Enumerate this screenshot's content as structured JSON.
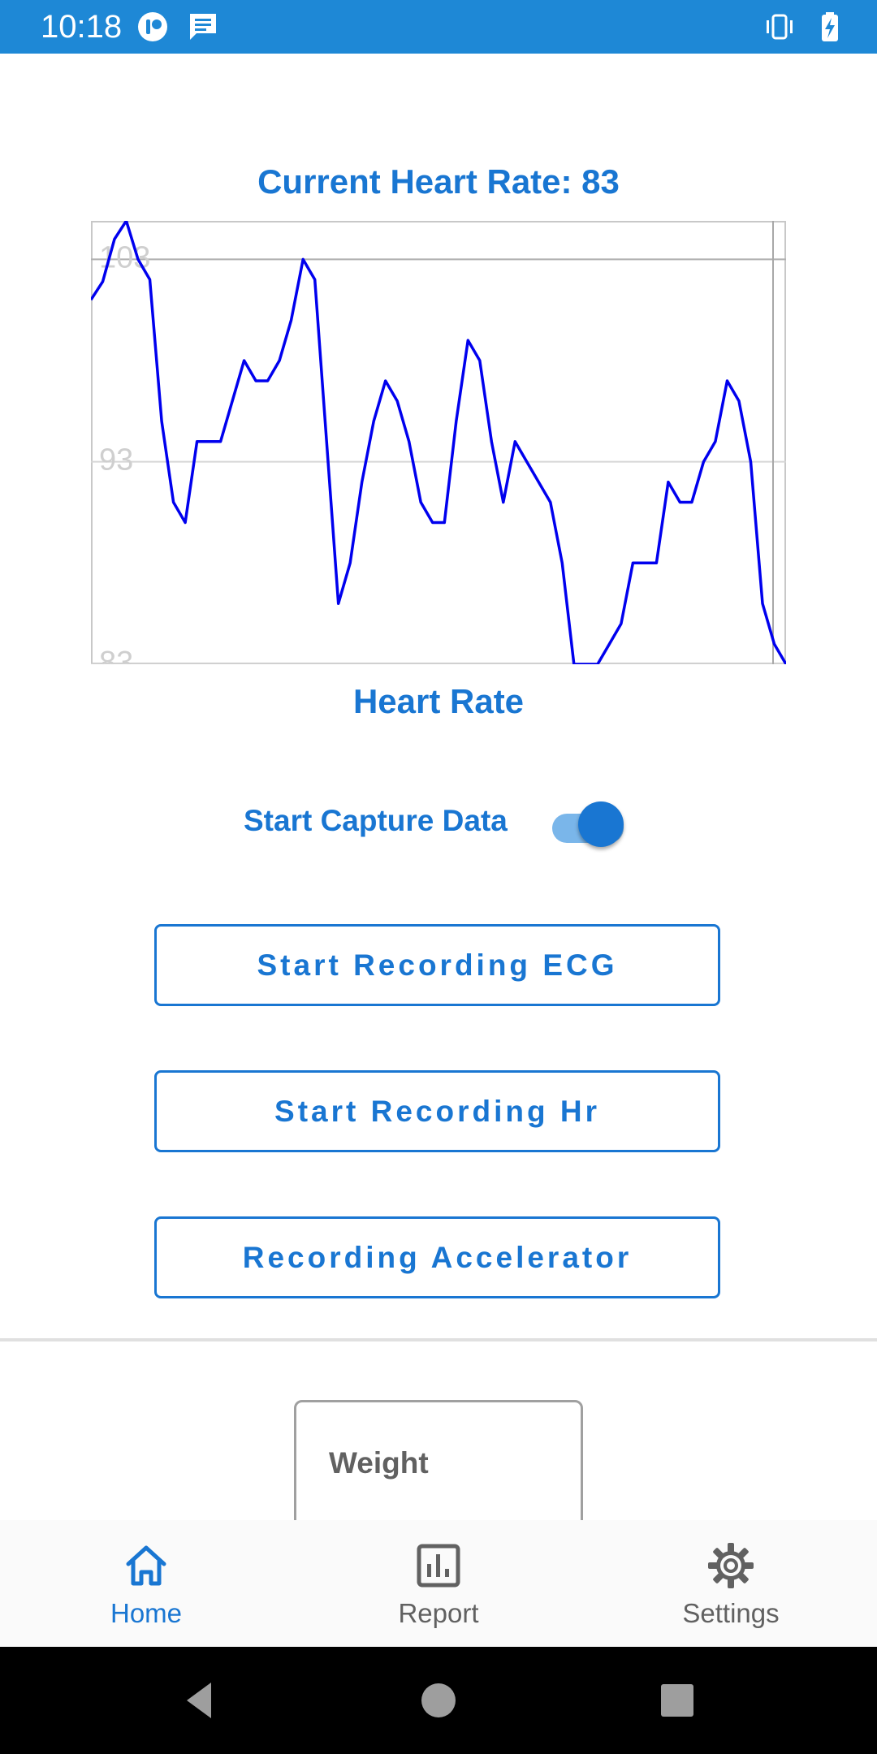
{
  "status_bar": {
    "time": "10:18",
    "background": "#1e88d6"
  },
  "heart_rate": {
    "current_label": "Current Heart Rate: 83",
    "caption": "Heart Rate"
  },
  "chart_data": {
    "type": "line",
    "title": "",
    "xlabel": "",
    "ylabel": "",
    "ylim": [
      83,
      104.9
    ],
    "yticks": [
      "103",
      "93",
      "83"
    ],
    "reference_line": 103,
    "grid": true,
    "series": [
      {
        "color": "#0000ee",
        "values": [
          101,
          101.9,
          104,
          104.9,
          103,
          102,
          95,
          91,
          90,
          94,
          94,
          94,
          96,
          98,
          97,
          97,
          98,
          100,
          103,
          102,
          94,
          86,
          88,
          92,
          95,
          97,
          96,
          94,
          91,
          90,
          90,
          95,
          99,
          98,
          94,
          91,
          94,
          93,
          92,
          91,
          88,
          83,
          83,
          83,
          84,
          85,
          88,
          88,
          88,
          92,
          91,
          91,
          93,
          94,
          97,
          96,
          93,
          86,
          84,
          83
        ]
      }
    ]
  },
  "capture": {
    "label": "Start Capture Data",
    "checked": true
  },
  "buttons": {
    "ecg": "Start Recording ECG",
    "hr": "Start Recording Hr",
    "accel": "Recording Accelerator"
  },
  "weight": {
    "label": "Weight"
  },
  "nav": {
    "items": [
      {
        "label": "Home",
        "icon": "home-icon",
        "active": true
      },
      {
        "label": "Report",
        "icon": "report-icon",
        "active": false
      },
      {
        "label": "Settings",
        "icon": "gear-icon",
        "active": false
      }
    ]
  },
  "colors": {
    "accent": "#1976d2",
    "line": "#0000ee"
  }
}
